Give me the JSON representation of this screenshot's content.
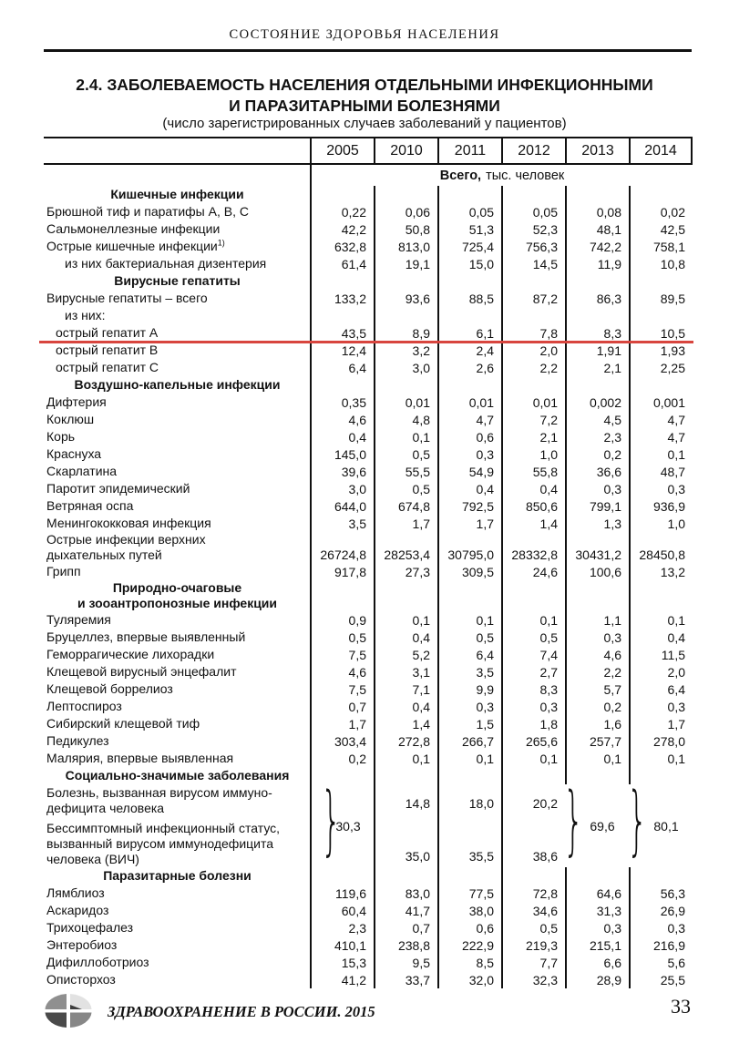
{
  "page": {
    "running_head": "СОСТОЯНИЕ ЗДОРОВЬЯ НАСЕЛЕНИЯ",
    "title_line1": "2.4. ЗАБОЛЕВАЕМОСТЬ НАСЕЛЕНИЯ ОТДЕЛЬНЫМИ ИНФЕКЦИОННЫМИ",
    "title_line2": "И ПАРАЗИТАРНЫМИ БОЛЕЗНЯМИ",
    "subtitle": "(число зарегистрированных случаев заболеваний у пациентов)",
    "footer_text": "ЗДРАВООХРАНЕНИЕ В РОССИИ. 2015",
    "page_number": "33"
  },
  "table": {
    "years": [
      "2005",
      "2010",
      "2011",
      "2012",
      "2013",
      "2014"
    ],
    "units_bold": "Всего,",
    "units_rest": "тыс. человек",
    "highlight_color": "#d8453e",
    "rows": [
      {
        "type": "section",
        "lines": [
          "Кишечные инфекции"
        ]
      },
      {
        "type": "data",
        "label": "Брюшной тиф и паратифы А, В, С",
        "values": [
          "0,22",
          "0,06",
          "0,05",
          "0,05",
          "0,08",
          "0,02"
        ]
      },
      {
        "type": "data",
        "label": "Сальмонеллезные инфекции",
        "values": [
          "42,2",
          "50,8",
          "51,3",
          "52,3",
          "48,1",
          "42,5"
        ]
      },
      {
        "type": "data",
        "label": "Острые кишечные инфекции",
        "sup": "1)",
        "values": [
          "632,8",
          "813,0",
          "725,4",
          "756,3",
          "742,2",
          "758,1"
        ]
      },
      {
        "type": "data",
        "label": "из них бактериальная дизентерия",
        "indent": 2,
        "values": [
          "61,4",
          "19,1",
          "15,0",
          "14,5",
          "11,9",
          "10,8"
        ]
      },
      {
        "type": "section",
        "lines": [
          "Вирусные гепатиты"
        ]
      },
      {
        "type": "data",
        "label": "Вирусные гепатиты – всего",
        "values": [
          "133,2",
          "93,6",
          "88,5",
          "87,2",
          "86,3",
          "89,5"
        ]
      },
      {
        "type": "data",
        "label": "из них:",
        "indent": 2,
        "values": [
          "",
          "",
          "",
          "",
          "",
          ""
        ]
      },
      {
        "type": "data",
        "label": "острый гепатит А",
        "indent": 1,
        "highlight": true,
        "values": [
          "43,5",
          "8,9",
          "6,1",
          "7,8",
          "8,3",
          "10,5"
        ]
      },
      {
        "type": "data",
        "label": "острый гепатит В",
        "indent": 1,
        "values": [
          "12,4",
          "3,2",
          "2,4",
          "2,0",
          "1,91",
          "1,93"
        ]
      },
      {
        "type": "data",
        "label": "острый гепатит С",
        "indent": 1,
        "values": [
          "6,4",
          "3,0",
          "2,6",
          "2,2",
          "2,1",
          "2,25"
        ]
      },
      {
        "type": "section",
        "lines": [
          "Воздушно-капельные инфекции"
        ]
      },
      {
        "type": "data",
        "label": "Дифтерия",
        "values": [
          "0,35",
          "0,01",
          "0,01",
          "0,01",
          "0,002",
          "0,001"
        ]
      },
      {
        "type": "data",
        "label": "Коклюш",
        "values": [
          "4,6",
          "4,8",
          "4,7",
          "7,2",
          "4,5",
          "4,7"
        ]
      },
      {
        "type": "data",
        "label": "Корь",
        "values": [
          "0,4",
          "0,1",
          "0,6",
          "2,1",
          "2,3",
          "4,7"
        ]
      },
      {
        "type": "data",
        "label": "Краснуха",
        "values": [
          "145,0",
          "0,5",
          "0,3",
          "1,0",
          "0,2",
          "0,1"
        ]
      },
      {
        "type": "data",
        "label": "Скарлатина",
        "values": [
          "39,6",
          "55,5",
          "54,9",
          "55,8",
          "36,6",
          "48,7"
        ]
      },
      {
        "type": "data",
        "label": "Паротит эпидемический",
        "values": [
          "3,0",
          "0,5",
          "0,4",
          "0,4",
          "0,3",
          "0,3"
        ]
      },
      {
        "type": "data",
        "label": "Ветряная оспа",
        "values": [
          "644,0",
          "674,8",
          "792,5",
          "850,6",
          "799,1",
          "936,9"
        ]
      },
      {
        "type": "data",
        "label": "Менингококковая инфекция",
        "values": [
          "3,5",
          "1,7",
          "1,7",
          "1,4",
          "1,3",
          "1,0"
        ]
      },
      {
        "type": "data",
        "label": "Острые инфекции верхних",
        "label2": "дыхательных путей",
        "values": [
          "26724,8",
          "28253,4",
          "30795,0",
          "28332,8",
          "30431,2",
          "28450,8"
        ]
      },
      {
        "type": "data",
        "label": "Грипп",
        "values": [
          "917,8",
          "27,3",
          "309,5",
          "24,6",
          "100,6",
          "13,2"
        ]
      },
      {
        "type": "section",
        "lines": [
          "Природно-очаговые",
          "и зооантропонозные инфекции"
        ]
      },
      {
        "type": "data",
        "label": "Туляремия",
        "values": [
          "0,9",
          "0,1",
          "0,1",
          "0,1",
          "1,1",
          "0,1"
        ]
      },
      {
        "type": "data",
        "label": "Бруцеллез, впервые выявленный",
        "values": [
          "0,5",
          "0,4",
          "0,5",
          "0,5",
          "0,3",
          "0,4"
        ]
      },
      {
        "type": "data",
        "label": "Геморрагические лихорадки",
        "values": [
          "7,5",
          "5,2",
          "6,4",
          "7,4",
          "4,6",
          "11,5"
        ]
      },
      {
        "type": "data",
        "label": "Клещевой вирусный энцефалит",
        "values": [
          "4,6",
          "3,1",
          "3,5",
          "2,7",
          "2,2",
          "2,0"
        ]
      },
      {
        "type": "data",
        "label": "Клещевой боррелиоз",
        "values": [
          "7,5",
          "7,1",
          "9,9",
          "8,3",
          "5,7",
          "6,4"
        ]
      },
      {
        "type": "data",
        "label": "Лептоспироз",
        "values": [
          "0,7",
          "0,4",
          "0,3",
          "0,3",
          "0,2",
          "0,3"
        ]
      },
      {
        "type": "data",
        "label": "Сибирский клещевой тиф",
        "values": [
          "1,7",
          "1,4",
          "1,5",
          "1,8",
          "1,6",
          "1,7"
        ]
      },
      {
        "type": "data",
        "label": "Педикулез",
        "values": [
          "303,4",
          "272,8",
          "266,7",
          "265,6",
          "257,7",
          "278,0"
        ]
      },
      {
        "type": "data",
        "label": "Малярия, впервые выявленная",
        "values": [
          "0,2",
          "0,1",
          "0,1",
          "0,1",
          "0,1",
          "0,1"
        ]
      },
      {
        "type": "section",
        "lines": [
          "Социально-значимые заболевания"
        ]
      },
      {
        "type": "hiv"
      },
      {
        "type": "section",
        "lines": [
          "Паразитарные болезни"
        ]
      },
      {
        "type": "data",
        "label": "Лямблиоз",
        "values": [
          "119,6",
          "83,0",
          "77,5",
          "72,8",
          "64,6",
          "56,3"
        ]
      },
      {
        "type": "data",
        "label": "Аскаридоз",
        "values": [
          "60,4",
          "41,7",
          "38,0",
          "34,6",
          "31,3",
          "26,9"
        ]
      },
      {
        "type": "data",
        "label": "Трихоцефалез",
        "values": [
          "2,3",
          "0,7",
          "0,6",
          "0,5",
          "0,3",
          "0,3"
        ]
      },
      {
        "type": "data",
        "label": "Энтеробиоз",
        "values": [
          "410,1",
          "238,8",
          "222,9",
          "219,3",
          "215,1",
          "216,9"
        ]
      },
      {
        "type": "data",
        "label": "Дифиллоботриоз",
        "values": [
          "15,3",
          "9,5",
          "8,5",
          "7,7",
          "6,6",
          "5,6"
        ]
      },
      {
        "type": "data",
        "label": "Описторхоз",
        "values": [
          "41,2",
          "33,7",
          "32,0",
          "32,3",
          "28,9",
          "25,5"
        ]
      }
    ],
    "hiv_block": {
      "row_a_lines": [
        "Болезнь, вызванная вирусом иммуно-",
        "дефицита человека"
      ],
      "row_b_lines": [
        "Бессимптомный инфекционный статус,",
        "вызванный вирусом иммунодефицита",
        "человека (ВИЧ)"
      ],
      "merged_2005": "30,3",
      "merged_2013": "69,6",
      "merged_2014": "80,1",
      "row_a_values": [
        "14,8",
        "18,0",
        "20,2"
      ],
      "row_b_values": [
        "35,0",
        "35,5",
        "38,6"
      ],
      "brace_glyph": "}"
    }
  }
}
